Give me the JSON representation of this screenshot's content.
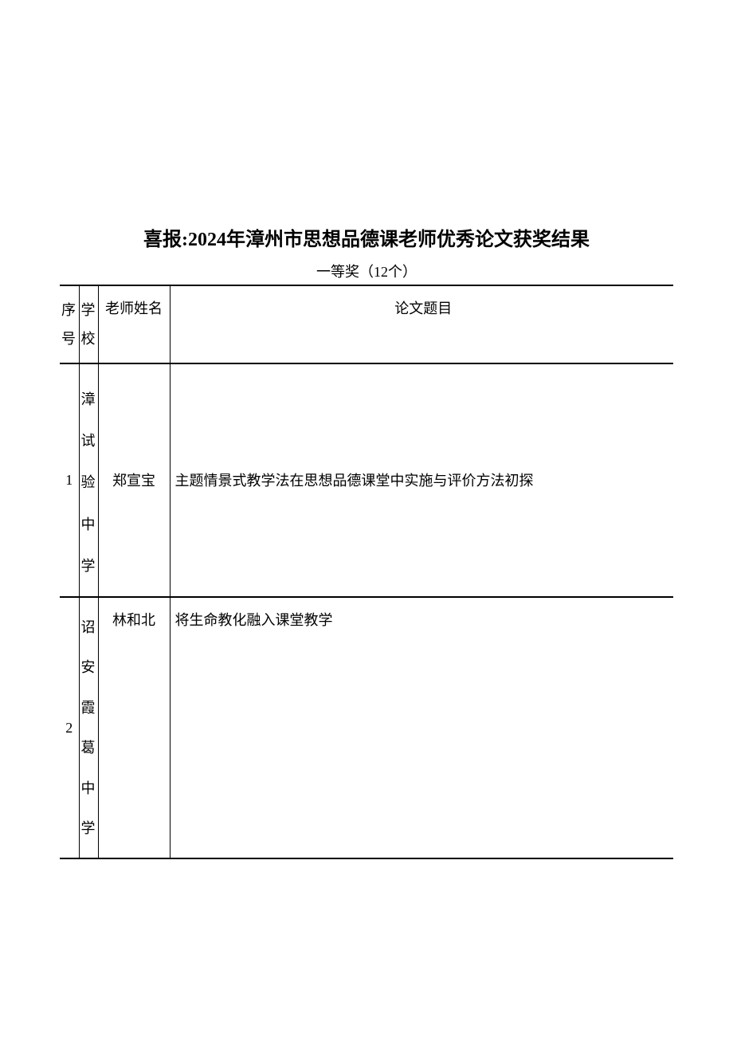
{
  "document": {
    "title": "喜报:2024年漳州市思想品德课老师优秀论文获奖结果",
    "subtitle": "一等奖（12个）",
    "text_color": "#000000",
    "background_color": "#ffffff",
    "border_color": "#000000",
    "title_fontsize": 24,
    "body_fontsize": 18
  },
  "table": {
    "columns": {
      "col1": "序号",
      "col2": "学校",
      "col3": "老师姓名",
      "col4": "论文题目"
    },
    "rows": [
      {
        "num": "1",
        "school": "漳 试验中学",
        "teacher": "郑宣宝",
        "paper_title": "主题情景式教学法在思想品德课堂中实施与评价方法初探"
      },
      {
        "num": "2",
        "school": "诏安霞葛中学",
        "teacher": "林和北",
        "paper_title": "将生命教化融入课堂教学"
      }
    ]
  }
}
